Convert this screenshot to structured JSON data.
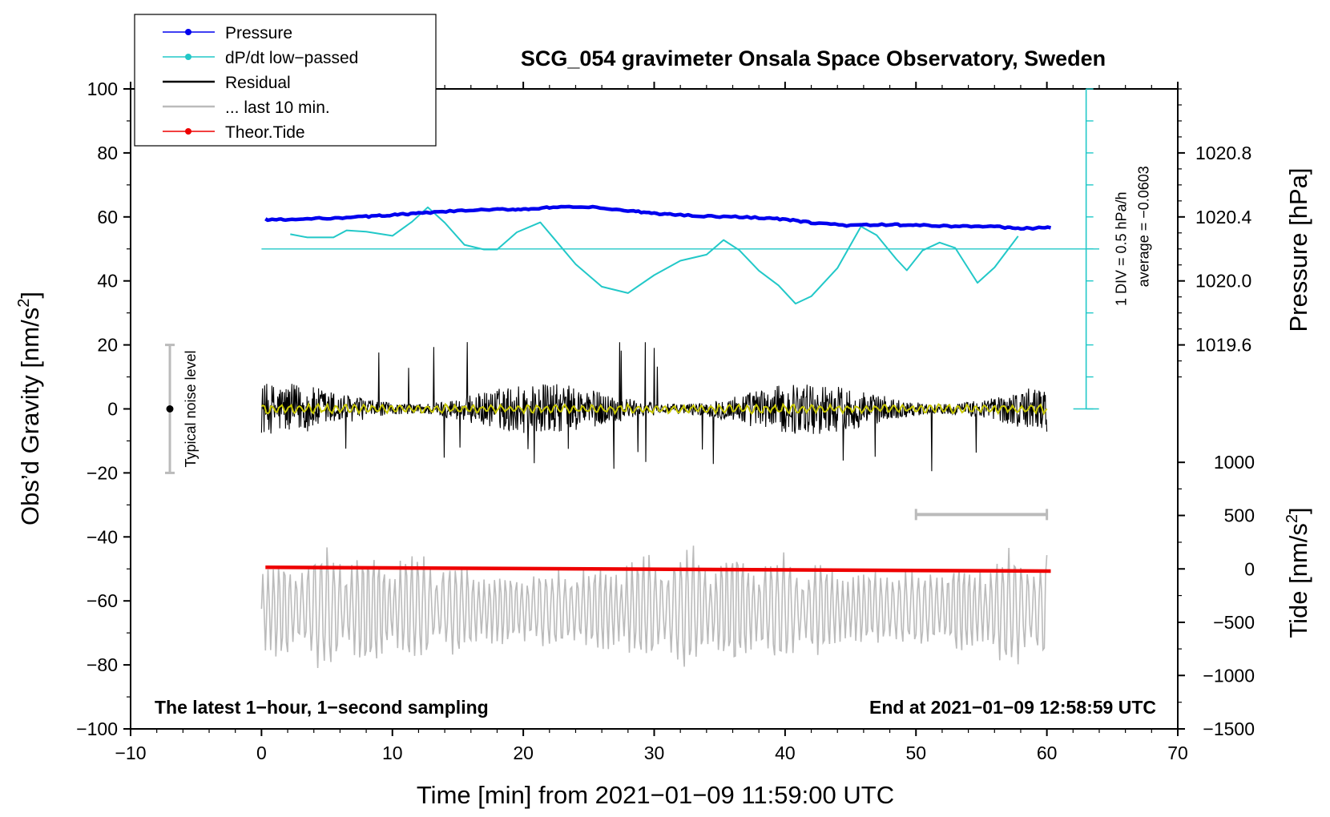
{
  "chart_data": {
    "type": "line",
    "title": "SCG_054 gravimeter Onsala Space Observatory, Sweden",
    "xlabel": "Time [min] from 2021−01−09 11:59:00 UTC",
    "ylabel_main": "Obs’d Gravity [nm/s",
    "ylabel_main_sup": "2",
    "ylabel_main_end": "]",
    "ylabel_pressure": "Pressure [hPa]",
    "ylabel_tide": "Tide [nm/s",
    "ylabel_tide_sup": "2",
    "ylabel_tide_end": "]",
    "xlim": [
      -10,
      70
    ],
    "ylim": [
      -100,
      100
    ],
    "x_ticks": [
      "−10",
      "0",
      "10",
      "20",
      "30",
      "40",
      "50",
      "60",
      "70"
    ],
    "x_tick_values": [
      -10,
      0,
      10,
      20,
      30,
      40,
      50,
      60,
      70
    ],
    "y_ticks": [
      "100",
      "80",
      "60",
      "40",
      "20",
      "0",
      "−20",
      "−40",
      "−60",
      "−80",
      "−100"
    ],
    "y_tick_values": [
      100,
      80,
      60,
      40,
      20,
      0,
      -20,
      -40,
      -60,
      -80,
      -100
    ],
    "pressure_axis": {
      "ticks": [
        "1020.8",
        "1020.4",
        "1020.0",
        "1019.6"
      ],
      "tick_values": [
        1020.8,
        1020.4,
        1020.0,
        1019.6
      ],
      "main_axis_equiv": [
        80,
        60,
        40,
        20
      ]
    },
    "tide_axis": {
      "ticks": [
        "1000",
        "500",
        "0",
        "−500",
        "−1000",
        "−1500"
      ],
      "tick_values": [
        1000,
        500,
        0,
        -500,
        -1000,
        -1500
      ],
      "main_axis_equiv": [
        -16.7,
        -33.3,
        -50,
        -66.7,
        -83.3,
        -100
      ]
    },
    "legend": [
      {
        "label": "Pressure",
        "color": "#0000ee",
        "marker": true
      },
      {
        "label": "dP/dt low−passed",
        "color": "#22c8c8",
        "marker": true
      },
      {
        "label": "Residual",
        "color": "#000000",
        "marker": false
      },
      {
        "label": "... last 10 min.",
        "color": "#bbbbbb",
        "marker": false
      },
      {
        "label": "Theor.Tide",
        "color": "#ee0000",
        "marker": true
      }
    ],
    "series": [
      {
        "name": "Pressure",
        "color": "#0000ee",
        "x": [
          0.3,
          2,
          5,
          8,
          10,
          12,
          15,
          18,
          20,
          22,
          25,
          28,
          30,
          32,
          35,
          38,
          40,
          42,
          45,
          48,
          50,
          53,
          56,
          58,
          60.3
        ],
        "y": [
          59.2,
          59.1,
          59.6,
          60.1,
          60.6,
          61.1,
          61.9,
          62.3,
          62.4,
          62.9,
          63.1,
          61.9,
          61.1,
          60.6,
          60.1,
          59.8,
          59.2,
          58.2,
          57.3,
          57.6,
          57.4,
          57.1,
          57.0,
          56.4,
          56.6
        ]
      },
      {
        "name": "dP/dt low−passed",
        "color": "#22c8c8",
        "x": [
          2.2,
          3.5,
          5.5,
          6.5,
          8,
          10,
          11.5,
          12.7,
          14,
          15.5,
          17,
          18,
          19.5,
          21.3,
          22.5,
          24,
          26,
          28,
          30,
          32,
          34,
          35.3,
          36.5,
          38,
          39.5,
          40.8,
          42,
          44,
          45.8,
          47,
          48.5,
          49.3,
          50.5,
          51.8,
          53,
          54.7,
          56,
          57.8
        ],
        "y": [
          54.6,
          53.6,
          53.6,
          55.8,
          55.4,
          54.1,
          58.5,
          63.0,
          58.2,
          51.3,
          49.8,
          49.8,
          55.2,
          58.3,
          52.5,
          45.2,
          38.2,
          36.2,
          41.8,
          46.3,
          48.2,
          52.8,
          49.6,
          43.2,
          38.6,
          32.9,
          35.2,
          44.0,
          57.0,
          54.3,
          46.8,
          43.3,
          49.5,
          52.0,
          50.3,
          39.4,
          44.2,
          54.0
        ]
      },
      {
        "name": "dP/dt zero line",
        "color": "#22c8c8",
        "x": [
          0,
          64
        ],
        "y": [
          50,
          50
        ]
      },
      {
        "name": "Theor.Tide",
        "color": "#ee0000",
        "x": [
          0.3,
          60.3
        ],
        "y": [
          -49.5,
          -50.7
        ]
      }
    ],
    "residual": {
      "name": "Residual",
      "color": "#000000",
      "x_range": [
        0,
        60
      ],
      "typical_amplitude": 8,
      "max_excursions": [
        19,
        -21
      ],
      "smoothed_color": "#c8c800",
      "smoothed_amplitude": 1.5
    },
    "last_10_min": {
      "name": "... last 10 min.",
      "color": "#bbbbbb",
      "x_range": [
        0,
        60
      ],
      "center": -62.5,
      "amplitude_max": 22,
      "bar_x": [
        50,
        60
      ],
      "bar_y": -33
    },
    "dpdt_scale_bar": {
      "x": 63,
      "y_range": [
        0,
        100
      ],
      "label_1": "1 DIV = 0.5 hPa/h",
      "label_2": "average = −0.0603"
    },
    "noise_bar": {
      "x": -7,
      "y_range": [
        -20,
        20
      ],
      "center": 0,
      "label": "Typical noise level"
    },
    "annotations": {
      "bottom_left": "The latest 1−hour, 1−second sampling",
      "bottom_right": "End at 2021−01−09 12:58:59 UTC"
    }
  }
}
